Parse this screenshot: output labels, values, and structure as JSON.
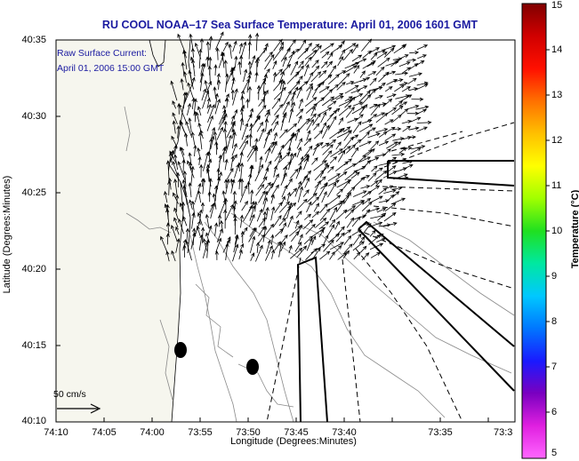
{
  "title": "RU COOL  NOAA–17  Sea Surface Temperature:  April 01, 2006 1601 GMT",
  "legend": {
    "line1": "Raw Surface Current:",
    "line2": "April 01, 2006 15:00 GMT"
  },
  "scale": {
    "label": "50 cm/s"
  },
  "axes": {
    "xlabel": "Longitude (Degrees:Minutes)",
    "ylabel": "Latitude (Degrees:Minutes)",
    "xticks": [
      "74:10",
      "74:05",
      "74:00",
      "73:55",
      "73:50",
      "73:45",
      "73:40",
      "73:35",
      "73:3"
    ],
    "yticks": [
      "40:35",
      "40:30",
      "40:25",
      "40:20",
      "40:15",
      "40:10"
    ]
  },
  "colorbar": {
    "label": "Temperature (°C)",
    "ticks": [
      "15",
      "14",
      "13",
      "12",
      "11",
      "10",
      "9",
      "8",
      "7",
      "6",
      "5"
    ],
    "min": 5,
    "max": 15,
    "colormap": [
      "#ff66ff",
      "#e020e0",
      "#7a00c0",
      "#1a1aff",
      "#0077ff",
      "#00c8ff",
      "#00e8a0",
      "#20e020",
      "#a0ff00",
      "#ffff00",
      "#ffc000",
      "#ff7000",
      "#ff1000",
      "#d00000",
      "#800000"
    ]
  },
  "colors": {
    "title": "#1a1aa0",
    "land": "#f6f6ee",
    "water": "#ffffff"
  }
}
